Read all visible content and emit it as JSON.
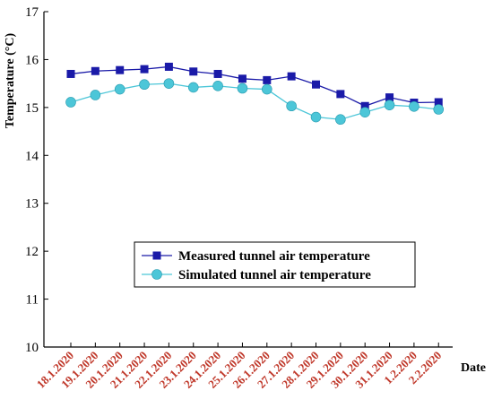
{
  "chart_data": {
    "type": "line",
    "title": "",
    "ylabel": "Temperature (°C)",
    "xlabel": "Date",
    "ylim": [
      10,
      17
    ],
    "yticks": [
      10,
      11,
      12,
      13,
      14,
      15,
      16,
      17
    ],
    "grid": false,
    "legend_position": "bottom-right",
    "categories": [
      "18.1.2020",
      "19.1.2020",
      "20.1.2020",
      "21.1.2020",
      "22.1.2020",
      "23.1.2020",
      "24.1.2020",
      "25.1.2020",
      "26.1.2020",
      "27.1.2020",
      "28.1.2020",
      "29.1.2020",
      "30.1.2020",
      "31.1.2020",
      "1.2.2020",
      "2.2.2020"
    ],
    "series": [
      {
        "name": "Measured tunnel air temperature",
        "color": "#1a1aa8",
        "marker": "square",
        "values": [
          15.7,
          15.76,
          15.78,
          15.8,
          15.85,
          15.75,
          15.7,
          15.6,
          15.57,
          15.65,
          15.48,
          15.28,
          15.03,
          15.21,
          15.1,
          15.11
        ]
      },
      {
        "name": "Simulated tunnel air temperature",
        "color": "#4cc6d8",
        "marker": "circle",
        "values": [
          15.11,
          15.26,
          15.38,
          15.48,
          15.5,
          15.42,
          15.45,
          15.4,
          15.38,
          15.03,
          14.8,
          14.75,
          14.9,
          15.05,
          15.02,
          14.96
        ]
      }
    ]
  }
}
